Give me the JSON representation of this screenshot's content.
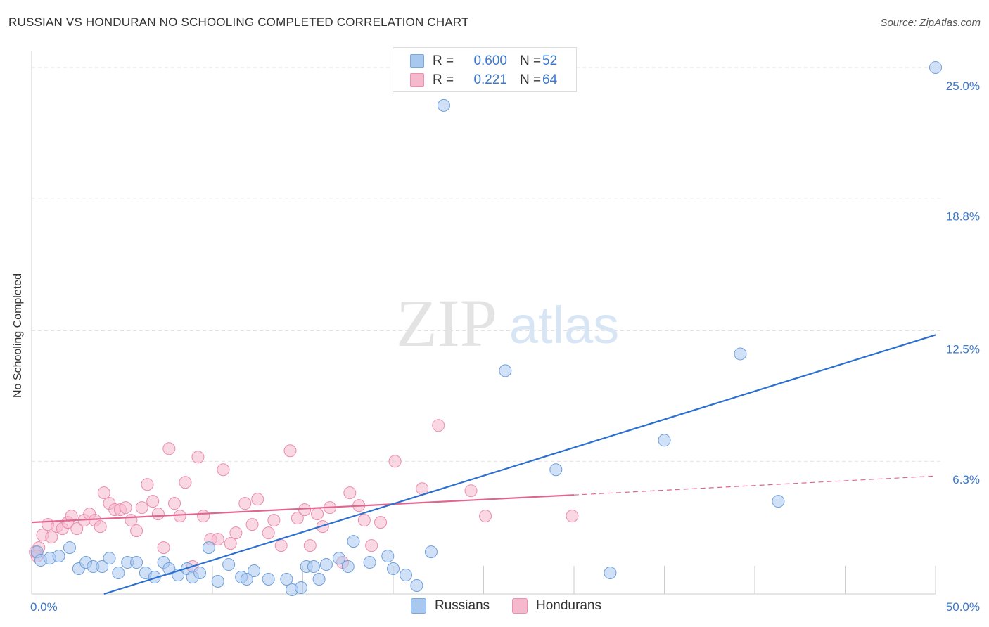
{
  "header": {
    "title": "RUSSIAN VS HONDURAN NO SCHOOLING COMPLETED CORRELATION CHART",
    "source": "Source: ZipAtlas.com"
  },
  "watermark": {
    "zip": "ZIP",
    "atlas": "atlas"
  },
  "legend": {
    "rows": [
      {
        "r_label": "R =",
        "r_value": "0.600",
        "n_label": "N =",
        "n_value": "52",
        "color": "#a9c8f0",
        "border": "#7aa7e0"
      },
      {
        "r_label": "R =",
        "r_value": "0.221",
        "n_label": "N =",
        "n_value": "64",
        "color": "#f6b8cc",
        "border": "#ee8fae"
      }
    ]
  },
  "bottom_legend": {
    "items": [
      {
        "label": "Russians",
        "color": "#a9c8f0",
        "border": "#7aa7e0"
      },
      {
        "label": "Hondurans",
        "color": "#f6b8cc",
        "border": "#ee8fae"
      }
    ]
  },
  "chart_data": {
    "type": "scatter",
    "title": "RUSSIAN VS HONDURAN NO SCHOOLING COMPLETED CORRELATION CHART",
    "xlabel": "",
    "ylabel": "No Schooling Completed",
    "xlim": [
      0,
      50
    ],
    "ylim": [
      0,
      25.8
    ],
    "x_tick_labels": [
      "0.0%",
      "50.0%"
    ],
    "y_ticks": [
      6.3,
      12.5,
      18.8,
      25.0
    ],
    "y_tick_labels": [
      "6.3%",
      "12.5%",
      "18.8%",
      "25.0%"
    ],
    "grid": true,
    "legend_placement": "top-center",
    "colors": {
      "russians_fill": "#a9c8f0",
      "russians_stroke": "#6e9fdc",
      "russians_line": "#2b6fd1",
      "hondurans_fill": "#f6b8cc",
      "hondurans_stroke": "#ec8cab",
      "hondurans_line": "#e0668f",
      "tick_label": "#3a78cc"
    },
    "series": [
      {
        "name": "Russians",
        "trend": {
          "x": [
            4.0,
            50.0
          ],
          "y": [
            0.0,
            12.3
          ]
        },
        "points": [
          [
            0.3,
            2.0
          ],
          [
            0.5,
            1.6
          ],
          [
            1.0,
            1.7
          ],
          [
            1.5,
            1.8
          ],
          [
            2.1,
            2.2
          ],
          [
            2.6,
            1.2
          ],
          [
            3.0,
            1.5
          ],
          [
            3.4,
            1.3
          ],
          [
            3.9,
            1.3
          ],
          [
            4.3,
            1.7
          ],
          [
            4.8,
            1.0
          ],
          [
            5.3,
            1.5
          ],
          [
            5.8,
            1.5
          ],
          [
            6.3,
            1.0
          ],
          [
            6.8,
            0.8
          ],
          [
            7.3,
            1.5
          ],
          [
            7.6,
            1.2
          ],
          [
            8.1,
            0.9
          ],
          [
            8.6,
            1.2
          ],
          [
            8.9,
            0.8
          ],
          [
            9.3,
            1.0
          ],
          [
            9.8,
            2.2
          ],
          [
            10.3,
            0.6
          ],
          [
            10.9,
            1.4
          ],
          [
            11.6,
            0.8
          ],
          [
            11.9,
            0.7
          ],
          [
            12.3,
            1.1
          ],
          [
            13.1,
            0.7
          ],
          [
            14.1,
            0.7
          ],
          [
            14.4,
            0.2
          ],
          [
            14.9,
            0.3
          ],
          [
            15.2,
            1.3
          ],
          [
            15.6,
            1.3
          ],
          [
            15.9,
            0.7
          ],
          [
            16.3,
            1.4
          ],
          [
            17.0,
            1.7
          ],
          [
            17.5,
            1.3
          ],
          [
            17.8,
            2.5
          ],
          [
            18.7,
            1.5
          ],
          [
            19.7,
            1.8
          ],
          [
            20.0,
            1.2
          ],
          [
            20.7,
            0.9
          ],
          [
            21.3,
            0.4
          ],
          [
            22.1,
            2.0
          ],
          [
            22.8,
            23.2
          ],
          [
            26.2,
            10.6
          ],
          [
            29.0,
            5.9
          ],
          [
            32.0,
            1.0
          ],
          [
            35.0,
            7.3
          ],
          [
            39.2,
            11.4
          ],
          [
            41.3,
            4.4
          ],
          [
            50.0,
            25.0
          ]
        ]
      },
      {
        "name": "Hondurans",
        "trend": {
          "x": [
            0.0,
            30.0
          ],
          "y": [
            3.4,
            4.7
          ]
        },
        "trend_dashed": {
          "x": [
            30.0,
            50.0
          ],
          "y": [
            4.7,
            5.6
          ]
        },
        "points": [
          [
            0.2,
            2.0
          ],
          [
            0.4,
            2.2
          ],
          [
            0.6,
            2.8
          ],
          [
            0.9,
            3.3
          ],
          [
            1.1,
            2.7
          ],
          [
            1.4,
            3.2
          ],
          [
            1.7,
            3.1
          ],
          [
            2.0,
            3.4
          ],
          [
            2.2,
            3.7
          ],
          [
            2.5,
            3.1
          ],
          [
            2.9,
            3.5
          ],
          [
            3.2,
            3.8
          ],
          [
            3.5,
            3.5
          ],
          [
            3.8,
            3.2
          ],
          [
            4.0,
            4.8
          ],
          [
            4.3,
            4.3
          ],
          [
            4.6,
            4.0
          ],
          [
            4.9,
            4.0
          ],
          [
            5.2,
            4.1
          ],
          [
            5.5,
            3.5
          ],
          [
            5.8,
            3.0
          ],
          [
            6.1,
            4.1
          ],
          [
            6.4,
            5.2
          ],
          [
            6.7,
            4.4
          ],
          [
            7.0,
            3.8
          ],
          [
            7.3,
            2.2
          ],
          [
            7.6,
            6.9
          ],
          [
            7.9,
            4.3
          ],
          [
            8.2,
            3.7
          ],
          [
            8.5,
            5.3
          ],
          [
            8.9,
            1.3
          ],
          [
            9.2,
            6.5
          ],
          [
            9.5,
            3.7
          ],
          [
            9.9,
            2.6
          ],
          [
            10.3,
            2.6
          ],
          [
            10.6,
            5.9
          ],
          [
            11.0,
            2.4
          ],
          [
            11.3,
            2.9
          ],
          [
            11.8,
            4.3
          ],
          [
            12.2,
            3.3
          ],
          [
            12.5,
            4.5
          ],
          [
            13.1,
            2.9
          ],
          [
            13.4,
            3.5
          ],
          [
            13.8,
            2.3
          ],
          [
            14.3,
            6.8
          ],
          [
            14.7,
            3.6
          ],
          [
            15.1,
            4.0
          ],
          [
            15.4,
            2.3
          ],
          [
            15.8,
            3.8
          ],
          [
            16.1,
            3.2
          ],
          [
            16.5,
            4.1
          ],
          [
            17.2,
            1.5
          ],
          [
            17.6,
            4.8
          ],
          [
            18.1,
            4.2
          ],
          [
            18.4,
            3.5
          ],
          [
            18.8,
            2.3
          ],
          [
            19.3,
            3.4
          ],
          [
            20.1,
            6.3
          ],
          [
            21.6,
            5.0
          ],
          [
            22.5,
            8.0
          ],
          [
            24.3,
            4.9
          ],
          [
            25.1,
            3.7
          ],
          [
            29.9,
            3.7
          ],
          [
            0.3,
            1.8
          ]
        ]
      }
    ]
  }
}
